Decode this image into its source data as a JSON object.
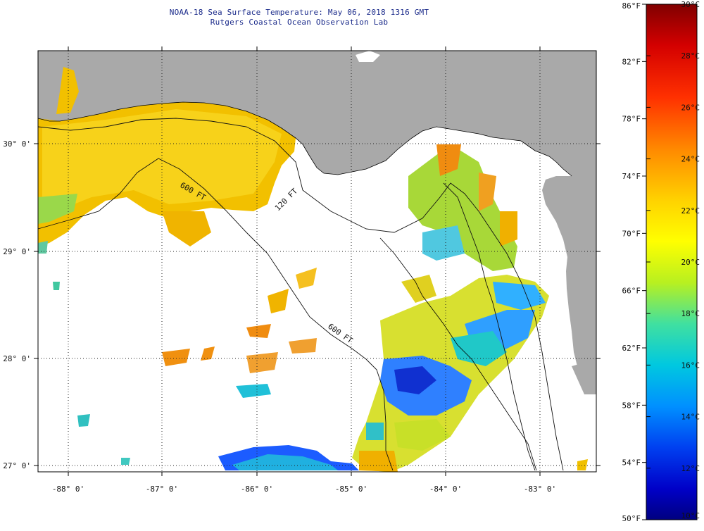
{
  "header": {
    "title": "NOAA-18 Sea Surface Temperature:  May 06, 2018 1316 GMT",
    "subtitle": "Rutgers Coastal Ocean Observation Lab"
  },
  "map": {
    "x_axis_labels": [
      "-88° 0'",
      "-87° 0'",
      "-86° 0'",
      "-85° 0'",
      "-84° 0'",
      "-83° 0'"
    ],
    "y_axis_labels": [
      "30° 0'",
      "29° 0'",
      "28° 0'",
      "27° 0'"
    ],
    "isobaths": [
      "120 FT",
      "600 FT",
      "600 FT"
    ]
  },
  "colorbar": {
    "fahrenheit_labels": [
      "86°F",
      "82°F",
      "78°F",
      "74°F",
      "70°F",
      "66°F",
      "62°F",
      "58°F",
      "54°F",
      "50°F"
    ],
    "celsius_labels": [
      "30°C",
      "28°C",
      "26°C",
      "24°C",
      "22°C",
      "20°C",
      "18°C",
      "16°C",
      "14°C",
      "12°C",
      "10°C"
    ]
  },
  "colors": {
    "land": "#a9a9a9",
    "ocean_nodata": "#ffffff",
    "title_text": "#1a2a8a"
  }
}
